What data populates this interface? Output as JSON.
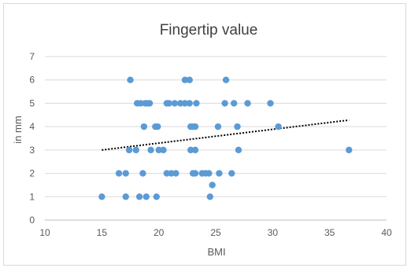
{
  "chart_data": {
    "type": "scatter",
    "title": "Fingertip value",
    "xlabel": "BMI",
    "ylabel": "in mm",
    "xlim": [
      10,
      40
    ],
    "ylim": [
      0,
      7
    ],
    "xticks": [
      "10",
      "15",
      "20",
      "25",
      "30",
      "35",
      "40"
    ],
    "yticks": [
      "0",
      "1",
      "2",
      "3",
      "4",
      "5",
      "6",
      "7"
    ],
    "grid": "horizontal",
    "legend": "none",
    "marker_color": "#5b9bd5",
    "trendline": {
      "type": "linear",
      "style": "dotted",
      "color": "#000000",
      "x": [
        15,
        36.7
      ],
      "y": [
        3.0,
        4.28
      ]
    },
    "points": [
      [
        15.0,
        1
      ],
      [
        17.1,
        1
      ],
      [
        18.3,
        1
      ],
      [
        18.9,
        1
      ],
      [
        19.8,
        1
      ],
      [
        24.5,
        1
      ],
      [
        24.7,
        1.5
      ],
      [
        16.5,
        2
      ],
      [
        17.1,
        2
      ],
      [
        18.6,
        2
      ],
      [
        20.7,
        2
      ],
      [
        21.1,
        2
      ],
      [
        21.5,
        2
      ],
      [
        23.0,
        2
      ],
      [
        23.2,
        2
      ],
      [
        23.8,
        2
      ],
      [
        24.1,
        2
      ],
      [
        24.4,
        2
      ],
      [
        25.3,
        2
      ],
      [
        26.4,
        2
      ],
      [
        17.4,
        3
      ],
      [
        18.0,
        3
      ],
      [
        19.3,
        3
      ],
      [
        20.0,
        3
      ],
      [
        20.4,
        3
      ],
      [
        22.8,
        3
      ],
      [
        23.2,
        3
      ],
      [
        27.0,
        3
      ],
      [
        36.7,
        3
      ],
      [
        18.7,
        4
      ],
      [
        19.7,
        4
      ],
      [
        19.9,
        4
      ],
      [
        22.8,
        4
      ],
      [
        23.0,
        4
      ],
      [
        23.2,
        4
      ],
      [
        25.2,
        4
      ],
      [
        26.9,
        4
      ],
      [
        30.5,
        4
      ],
      [
        18.1,
        5
      ],
      [
        18.4,
        5
      ],
      [
        18.8,
        5
      ],
      [
        19.0,
        5
      ],
      [
        19.2,
        5
      ],
      [
        20.7,
        5
      ],
      [
        20.9,
        5
      ],
      [
        21.4,
        5
      ],
      [
        21.9,
        5
      ],
      [
        22.3,
        5
      ],
      [
        22.7,
        5
      ],
      [
        23.3,
        5
      ],
      [
        25.8,
        5
      ],
      [
        26.6,
        5
      ],
      [
        27.8,
        5
      ],
      [
        29.8,
        5
      ],
      [
        17.5,
        6
      ],
      [
        22.3,
        6
      ],
      [
        22.7,
        6
      ],
      [
        25.9,
        6
      ]
    ]
  }
}
